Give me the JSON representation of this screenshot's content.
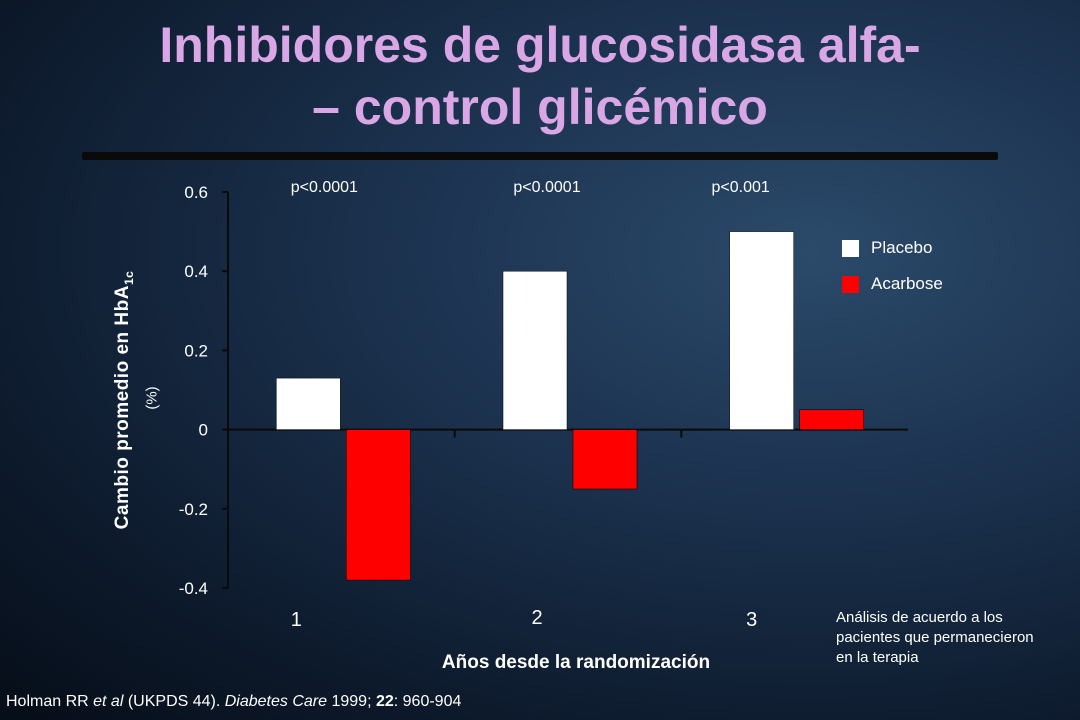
{
  "slide": {
    "title_line1": "Inhibidores de glucosidasa alfa-",
    "title_line2": "– control glicémico",
    "note": "Análisis de acuerdo a los pacientes que permanecieron en la terapia",
    "citation": {
      "part1": "Holman RR ",
      "part2": "et al",
      "part3": " (UKPDS 44). ",
      "part4": "Diabetes Care",
      "part5": " 1999; ",
      "part6": "22",
      "part7": ": 960-904"
    }
  },
  "chart_data": {
    "type": "bar",
    "title": "",
    "xlabel": "Años desde la randomización",
    "ylabel_main": "Cambio promedio en HbA",
    "ylabel_sub": "1c",
    "ylabel_unit": "(%)",
    "categories": [
      "1",
      "2",
      "3"
    ],
    "series": [
      {
        "name": "Placebo",
        "values": [
          0.13,
          0.4,
          0.5
        ],
        "color": "#ffffff"
      },
      {
        "name": "Acarbose",
        "values": [
          -0.38,
          -0.15,
          0.05
        ],
        "color": "#ff0000"
      }
    ],
    "annotations": [
      "p<0.0001",
      "p<0.0001",
      "p<0.001"
    ],
    "ylim": [
      -0.4,
      0.6
    ],
    "yticks": [
      "0.6",
      "0.4",
      "0.2",
      "0",
      "-0.2",
      "-0.4"
    ],
    "grid": false,
    "legend_position": "right"
  }
}
